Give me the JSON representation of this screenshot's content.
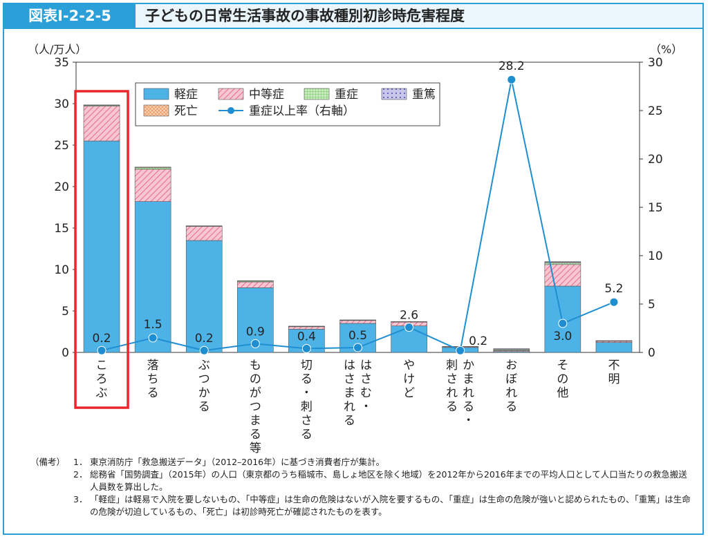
{
  "header": {
    "figure_label": "図表Ⅰ-2-2-5",
    "title": "子どもの日常生活事故の事故種別初診時危害程度"
  },
  "colors": {
    "accent": "#2a9fd8",
    "mild": "#4db3e6",
    "moderate": "#f2a3b8",
    "severe": "#a8dc9a",
    "critical": "#a8a4d6",
    "death": "#f7b58c",
    "line": "#1f8ed1",
    "highlight": "#e8262b"
  },
  "chart_data": {
    "type": "bar",
    "stacked": true,
    "left_axis": {
      "unit_label": "（人/万人）",
      "range": [
        0,
        35
      ],
      "ticks": [
        "0",
        "5",
        "10",
        "15",
        "20",
        "25",
        "30",
        "35"
      ]
    },
    "right_axis": {
      "unit_label": "（%）",
      "range": [
        0,
        30
      ],
      "ticks": [
        "0",
        "5",
        "10",
        "15",
        "20",
        "25",
        "30"
      ]
    },
    "categories": [
      "ころぶ",
      "落ちる",
      "ぶつかる",
      "ものがつまる等",
      "切る・刺さる",
      "はさむ・はさまれる",
      "やけど",
      "かまれる・刺される",
      "おぼれる",
      "その他",
      "不明"
    ],
    "series": [
      {
        "name": "軽症",
        "values": [
          25.5,
          18.2,
          13.5,
          7.8,
          2.8,
          3.5,
          3.2,
          0.6,
          0.1,
          8.0,
          1.2
        ]
      },
      {
        "name": "中等症",
        "values": [
          4.2,
          3.9,
          1.7,
          0.7,
          0.3,
          0.35,
          0.45,
          0.1,
          0.1,
          2.6,
          0.15
        ]
      },
      {
        "name": "重症",
        "values": [
          0.1,
          0.2,
          0.05,
          0.1,
          0.05,
          0.05,
          0.05,
          0.02,
          0.1,
          0.2,
          0.05
        ]
      },
      {
        "name": "重篤",
        "values": [
          0.05,
          0.05,
          0.02,
          0.05,
          0.02,
          0.02,
          0.02,
          0.0,
          0.1,
          0.1,
          0.02
        ]
      },
      {
        "name": "死亡",
        "values": [
          0.0,
          0.0,
          0.0,
          0.0,
          0.0,
          0.0,
          0.0,
          0.0,
          0.05,
          0.05,
          0.0
        ]
      }
    ],
    "line_series": {
      "name": "重症以上率（右軸）",
      "axis": "right",
      "values": [
        0.2,
        1.5,
        0.2,
        0.9,
        0.4,
        0.5,
        2.6,
        0.2,
        28.2,
        3.0,
        5.2
      ],
      "labels": [
        "0.2",
        "1.5",
        "0.2",
        "0.9",
        "0.4",
        "0.5",
        "2.6",
        "0.2",
        "28.2",
        "3.0",
        "5.2"
      ]
    },
    "legend_items": [
      "軽症",
      "中等症",
      "重症",
      "重篤",
      "死亡",
      "重症以上率（右軸）"
    ],
    "highlighted_category": "ころぶ",
    "legend_position": "top-left",
    "grid": false
  },
  "notes": {
    "head": "（備考）",
    "items": [
      {
        "num": "1．",
        "text": "東京消防庁「救急搬送データ」（2012–2016年）に基づき消費者庁が集計。"
      },
      {
        "num": "2．",
        "text": "総務省「国勢調査」（2015年）の人口（東京都のうち稲城市、島しょ地区を除く地域）を2012年から2016年までの平均人口として人口当たりの救急搬送人員数を算出した。"
      },
      {
        "num": "3．",
        "text": "「軽症」は軽易で入院を要しないもの、「中等症」は生命の危険はないが入院を要するもの、「重症」は生命の危険が強いと認められたもの、「重篤」は生命の危険が切迫しているもの、「死亡」は初診時死亡が確認されたものを表す。"
      }
    ]
  }
}
